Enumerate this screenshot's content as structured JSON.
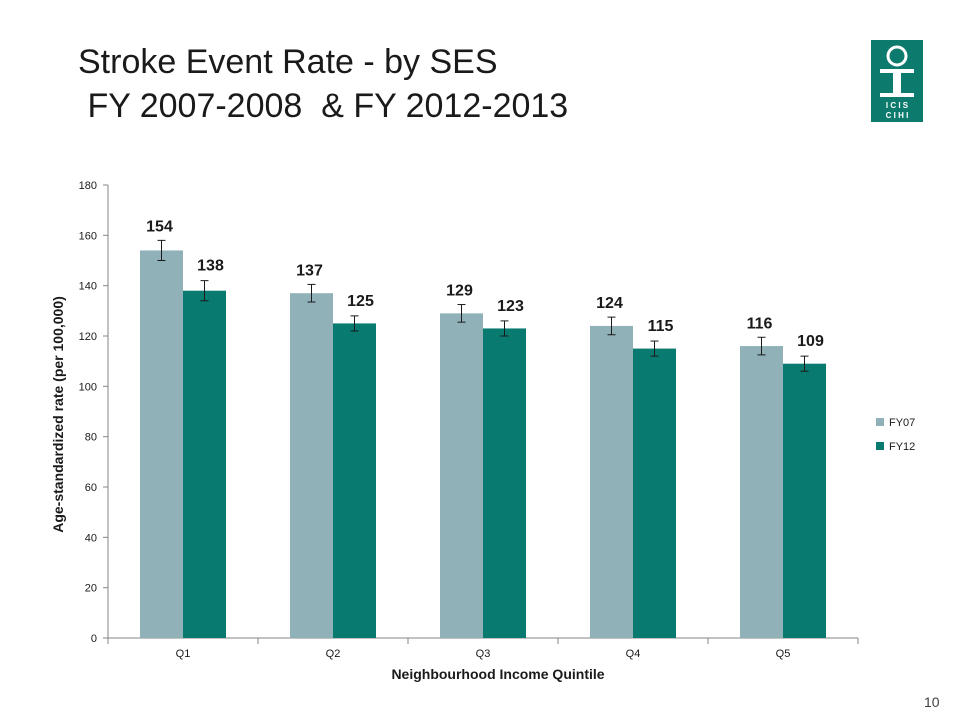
{
  "slide": {
    "title_line1": "Stroke Event Rate - by SES",
    "title_line2": " FY 2007-2008  & FY 2012-2013",
    "page_number": "10",
    "logo_text_top": "I C I S",
    "logo_text_bottom": "C I H I",
    "logo_color": "#0d7a6e"
  },
  "chart_data": {
    "type": "bar",
    "title": "",
    "xlabel": "Neighbourhood Income Quintile",
    "ylabel": "Age-standardized rate (per 100,000)",
    "ylim": [
      0,
      180
    ],
    "yticks": [
      0,
      20,
      40,
      60,
      80,
      100,
      120,
      140,
      160,
      180
    ],
    "categories": [
      "Q1",
      "Q2",
      "Q3",
      "Q4",
      "Q5"
    ],
    "series": [
      {
        "name": "FY07",
        "color": "#8fb1b7",
        "values": [
          154,
          137,
          129,
          124,
          116
        ],
        "error": [
          4,
          3.5,
          3.5,
          3.5,
          3.5
        ]
      },
      {
        "name": "FY12",
        "color": "#087a70",
        "values": [
          138,
          125,
          123,
          115,
          109
        ],
        "error": [
          4,
          3,
          3,
          3,
          3
        ]
      }
    ],
    "legend_position": "right",
    "grid": false
  }
}
